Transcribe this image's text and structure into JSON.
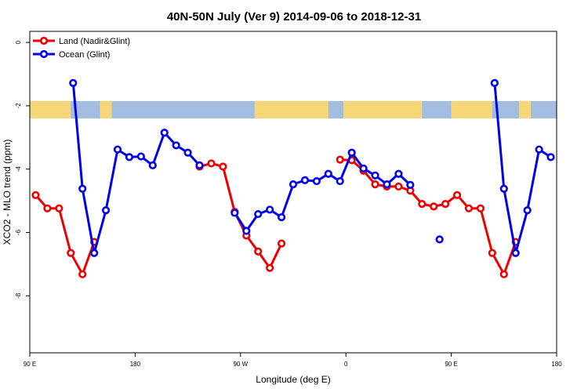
{
  "chart_data": {
    "type": "line",
    "title": "40N-50N July (Ver 9)   2014-09-06 to 2018-12-31",
    "xlabel": "Longitude (deg E)",
    "ylabel": "XCO2 - MLO trend (ppm)",
    "xlim": [
      90,
      540
    ],
    "ylim": [
      -9.8,
      0.35
    ],
    "x_ticks": [
      {
        "value": 90,
        "label": "90 E"
      },
      {
        "value": 180,
        "label": "180"
      },
      {
        "value": 270,
        "label": "90 W"
      },
      {
        "value": 360,
        "label": "0"
      },
      {
        "value": 450,
        "label": "90 E"
      },
      {
        "value": 540,
        "label": "180"
      }
    ],
    "y_ticks": [
      {
        "value": 0,
        "label": "0"
      },
      {
        "value": -2,
        "label": "-2"
      },
      {
        "value": -4,
        "label": "-4"
      },
      {
        "value": -6,
        "label": "-6"
      },
      {
        "value": -8,
        "label": "-8"
      }
    ],
    "legend_position": "top-left",
    "map_band": {
      "y_top": -1.85,
      "y_bottom": -2.4,
      "land_color": "#f5d77a",
      "ocean_color": "#a3bde0"
    },
    "series": [
      {
        "name": "Land (Nadir&Glint)",
        "color": "#ee0000",
        "segments": [
          [
            [
              95,
              -4.82
            ],
            [
              105,
              -5.24
            ],
            [
              115,
              -5.24
            ],
            [
              125,
              -6.65
            ],
            [
              135,
              -7.32
            ],
            [
              145,
              -6.3
            ]
          ],
          [
            [
              235,
              -3.92
            ],
            [
              245,
              -3.82
            ],
            [
              255,
              -3.92
            ],
            [
              265,
              -5.35
            ],
            [
              275,
              -6.1
            ],
            [
              285,
              -6.6
            ],
            [
              295,
              -7.12
            ],
            [
              305,
              -6.35
            ]
          ],
          [
            [
              355,
              -3.7
            ],
            [
              365,
              -3.72
            ],
            [
              375,
              -4.05
            ],
            [
              385,
              -4.48
            ],
            [
              395,
              -4.55
            ],
            [
              405,
              -4.55
            ],
            [
              415,
              -4.68
            ],
            [
              425,
              -5.1
            ],
            [
              435,
              -5.18
            ],
            [
              445,
              -5.1
            ],
            [
              455,
              -4.82
            ],
            [
              465,
              -5.24
            ],
            [
              475,
              -5.24
            ],
            [
              485,
              -6.65
            ],
            [
              495,
              -7.32
            ],
            [
              505,
              -6.3
            ]
          ]
        ]
      },
      {
        "name": "Ocean (Glint)",
        "color": "#0000ee",
        "segments": [
          [
            [
              127,
              -1.28
            ],
            [
              135,
              -4.62
            ],
            [
              145,
              -6.65
            ],
            [
              155,
              -5.3
            ],
            [
              165,
              -3.38
            ],
            [
              175,
              -3.62
            ],
            [
              185,
              -3.6
            ],
            [
              195,
              -3.88
            ],
            [
              205,
              -2.85
            ],
            [
              215,
              -3.25
            ],
            [
              225,
              -3.48
            ],
            [
              235,
              -3.88
            ]
          ],
          [
            [
              265,
              -5.38
            ],
            [
              275,
              -5.95
            ],
            [
              285,
              -5.42
            ],
            [
              295,
              -5.28
            ],
            [
              305,
              -5.52
            ],
            [
              315,
              -4.48
            ],
            [
              325,
              -4.35
            ],
            [
              335,
              -4.38
            ],
            [
              345,
              -4.15
            ],
            [
              355,
              -4.38
            ],
            [
              365,
              -3.48
            ],
            [
              375,
              -3.98
            ],
            [
              385,
              -4.2
            ],
            [
              395,
              -4.48
            ],
            [
              405,
              -4.15
            ],
            [
              415,
              -4.5
            ]
          ],
          [
            [
              440,
              -6.22
            ]
          ],
          [
            [
              487,
              -1.28
            ],
            [
              495,
              -4.62
            ],
            [
              505,
              -6.65
            ],
            [
              515,
              -5.3
            ],
            [
              525,
              -3.38
            ],
            [
              535,
              -3.62
            ]
          ]
        ]
      }
    ]
  }
}
